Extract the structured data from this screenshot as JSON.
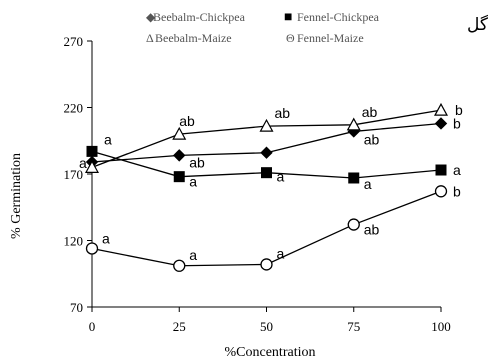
{
  "corner_text": "گل",
  "chart_data": {
    "type": "line",
    "xlabel": "%Concentration",
    "ylabel": "% Germination",
    "x": [
      0,
      25,
      50,
      75,
      100
    ],
    "xticks": [
      "0",
      "25",
      "50",
      "75",
      "100"
    ],
    "yticks": [
      "70",
      "120",
      "170",
      "220",
      "270"
    ],
    "xlim": [
      0,
      100
    ],
    "ylim": [
      70,
      270
    ],
    "grid": false,
    "legend_position": "top",
    "series": [
      {
        "name": "Beebalm-Chickpea",
        "marker": "diamond",
        "values": [
          179,
          184,
          186,
          202,
          208
        ],
        "labels": [
          "a",
          "ab",
          "",
          "ab",
          "b"
        ]
      },
      {
        "name": "Fennel-Chickpea",
        "marker": "square",
        "values": [
          187,
          168,
          171,
          167,
          173
        ],
        "labels": [
          "a",
          "a",
          "a",
          "a",
          "a"
        ]
      },
      {
        "name": "Beebalm-Maize",
        "marker": "triangle",
        "values": [
          175,
          200,
          206,
          207,
          218
        ],
        "labels": [
          "",
          "ab",
          "ab",
          "ab",
          "b"
        ]
      },
      {
        "name": "Fennel-Maize",
        "marker": "circle",
        "values": [
          114,
          101,
          102,
          132,
          157
        ],
        "labels": [
          "a",
          "a",
          "a",
          "ab",
          "b"
        ]
      }
    ],
    "legend": [
      {
        "symbol": "◆",
        "label": "Beebalm-Chickpea"
      },
      {
        "symbol": "■",
        "label": "Fennel-Chickpea"
      },
      {
        "symbol": "Δ",
        "label": "Beebalm-Maize"
      },
      {
        "symbol": "Θ",
        "label": "Fennel-Maize"
      }
    ]
  }
}
